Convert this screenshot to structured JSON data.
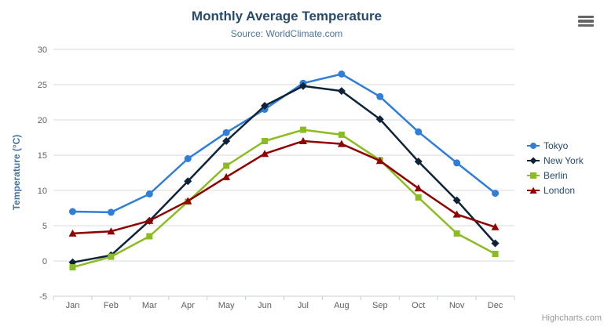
{
  "chart_data": {
    "type": "line",
    "title": "Monthly Average Temperature",
    "subtitle": "Source: WorldClimate.com",
    "xlabel": "",
    "ylabel": "Temperature (°C)",
    "ylim": [
      -5,
      30
    ],
    "ytick_step": 5,
    "grid": true,
    "legend_position": "right",
    "categories": [
      "Jan",
      "Feb",
      "Mar",
      "Apr",
      "May",
      "Jun",
      "Jul",
      "Aug",
      "Sep",
      "Oct",
      "Nov",
      "Dec"
    ],
    "series": [
      {
        "name": "Tokyo",
        "marker": "circle",
        "color": "#2f7ed8",
        "values": [
          7.0,
          6.9,
          9.5,
          14.5,
          18.2,
          21.5,
          25.2,
          26.5,
          23.3,
          18.3,
          13.9,
          9.6
        ]
      },
      {
        "name": "New York",
        "marker": "diamond",
        "color": "#0d233a",
        "values": [
          -0.2,
          0.8,
          5.7,
          11.3,
          17.0,
          22.0,
          24.8,
          24.1,
          20.1,
          14.1,
          8.6,
          2.5
        ]
      },
      {
        "name": "Berlin",
        "marker": "square",
        "color": "#8bbc21",
        "values": [
          -0.9,
          0.6,
          3.5,
          8.4,
          13.5,
          17.0,
          18.6,
          17.9,
          14.3,
          9.0,
          3.9,
          1.0
        ]
      },
      {
        "name": "London",
        "marker": "triangle",
        "color": "#910000",
        "values": [
          3.9,
          4.2,
          5.7,
          8.5,
          11.9,
          15.2,
          17.0,
          16.6,
          14.2,
          10.3,
          6.6,
          4.8
        ]
      }
    ],
    "colors": {
      "title": "#274b6d",
      "subtitle": "#4d759e",
      "axis_title": "#4572a7",
      "tick_label": "#606060",
      "gridline": "#d8d8d8",
      "axis_line": "#c0d0e0",
      "legend_text": "#274b6d"
    }
  },
  "credits": {
    "label": "Highcharts.com"
  }
}
